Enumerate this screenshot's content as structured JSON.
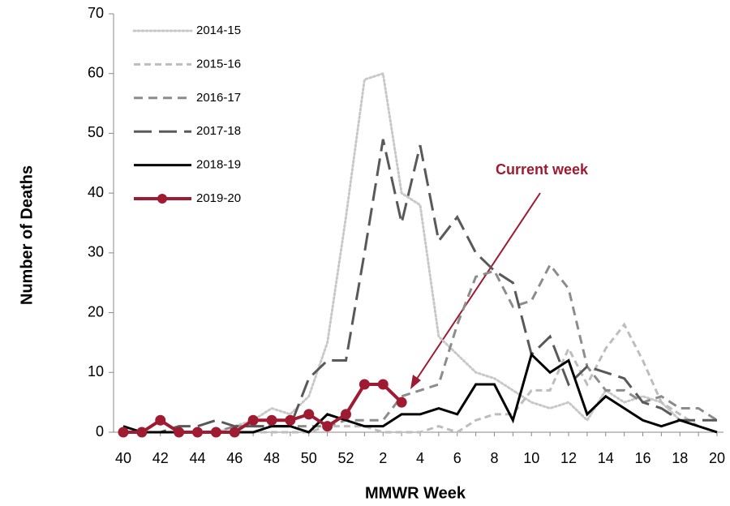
{
  "chart_data": {
    "type": "line",
    "y_label": "Number of Deaths",
    "x_label": "MMWR Week",
    "annotation": "Current week",
    "categories": [
      "40",
      null,
      "42",
      null,
      "44",
      null,
      "46",
      null,
      "48",
      null,
      "50",
      null,
      "52",
      null,
      "2",
      null,
      "4",
      null,
      "6",
      null,
      "8",
      null,
      "10",
      null,
      "12",
      null,
      "14",
      null,
      "16",
      null,
      "18",
      null,
      "20"
    ],
    "series": [
      {
        "name": "2014-15",
        "color": "#c8c8c8",
        "dash": "dotted",
        "values": [
          0,
          0,
          0,
          0,
          0,
          0,
          1,
          2,
          4,
          3,
          6,
          15,
          36,
          59,
          60,
          40,
          38,
          16,
          13,
          10,
          9,
          7,
          5,
          4,
          5,
          2,
          7,
          5,
          6,
          5,
          2,
          1,
          0
        ]
      },
      {
        "name": "2015-16",
        "color": "#bdbdbd",
        "dash": "short",
        "values": [
          0,
          0,
          0,
          0,
          0,
          0,
          0,
          0,
          0,
          0,
          0,
          1,
          1,
          1,
          0,
          0,
          0,
          1,
          0,
          2,
          3,
          3,
          7,
          7,
          14,
          8,
          14,
          18,
          12,
          5,
          3,
          1,
          0
        ]
      },
      {
        "name": "2016-17",
        "color": "#8c8c8c",
        "dash": "medium",
        "values": [
          0,
          0,
          0,
          0,
          0,
          0,
          1,
          1,
          1,
          1,
          1,
          1,
          2,
          2,
          2,
          6,
          7,
          8,
          18,
          26,
          27,
          21,
          22,
          28,
          24,
          11,
          7,
          7,
          5,
          6,
          4,
          4,
          2
        ]
      },
      {
        "name": "2017-18",
        "color": "#595959",
        "dash": "long",
        "values": [
          0,
          0,
          0,
          1,
          1,
          2,
          1,
          1,
          1,
          1,
          9,
          12,
          12,
          30,
          49,
          35,
          48,
          32,
          36,
          30,
          27,
          25,
          13,
          16,
          8,
          11,
          10,
          9,
          5,
          4,
          2,
          2,
          2
        ]
      },
      {
        "name": "2018-19",
        "color": "#000000",
        "dash": "solid",
        "values": [
          1,
          0,
          0,
          0,
          0,
          0,
          0,
          0,
          1,
          1,
          0,
          3,
          2,
          1,
          1,
          3,
          3,
          4,
          3,
          8,
          8,
          2,
          13,
          10,
          12,
          3,
          6,
          4,
          2,
          1,
          2,
          1,
          0
        ]
      },
      {
        "name": "2019-20",
        "color": "#9e1b32",
        "dash": "solid",
        "markers": true,
        "values": [
          0,
          0,
          2,
          0,
          0,
          0,
          0,
          2,
          2,
          2,
          3,
          1,
          3,
          8,
          8,
          5,
          null,
          null,
          null,
          null,
          null,
          null,
          null,
          null,
          null,
          null,
          null,
          null,
          null,
          null,
          null,
          null,
          null
        ]
      }
    ],
    "ylim": [
      0,
      70
    ],
    "yticks": [
      0,
      10,
      20,
      30,
      40,
      50,
      60,
      70
    ]
  }
}
